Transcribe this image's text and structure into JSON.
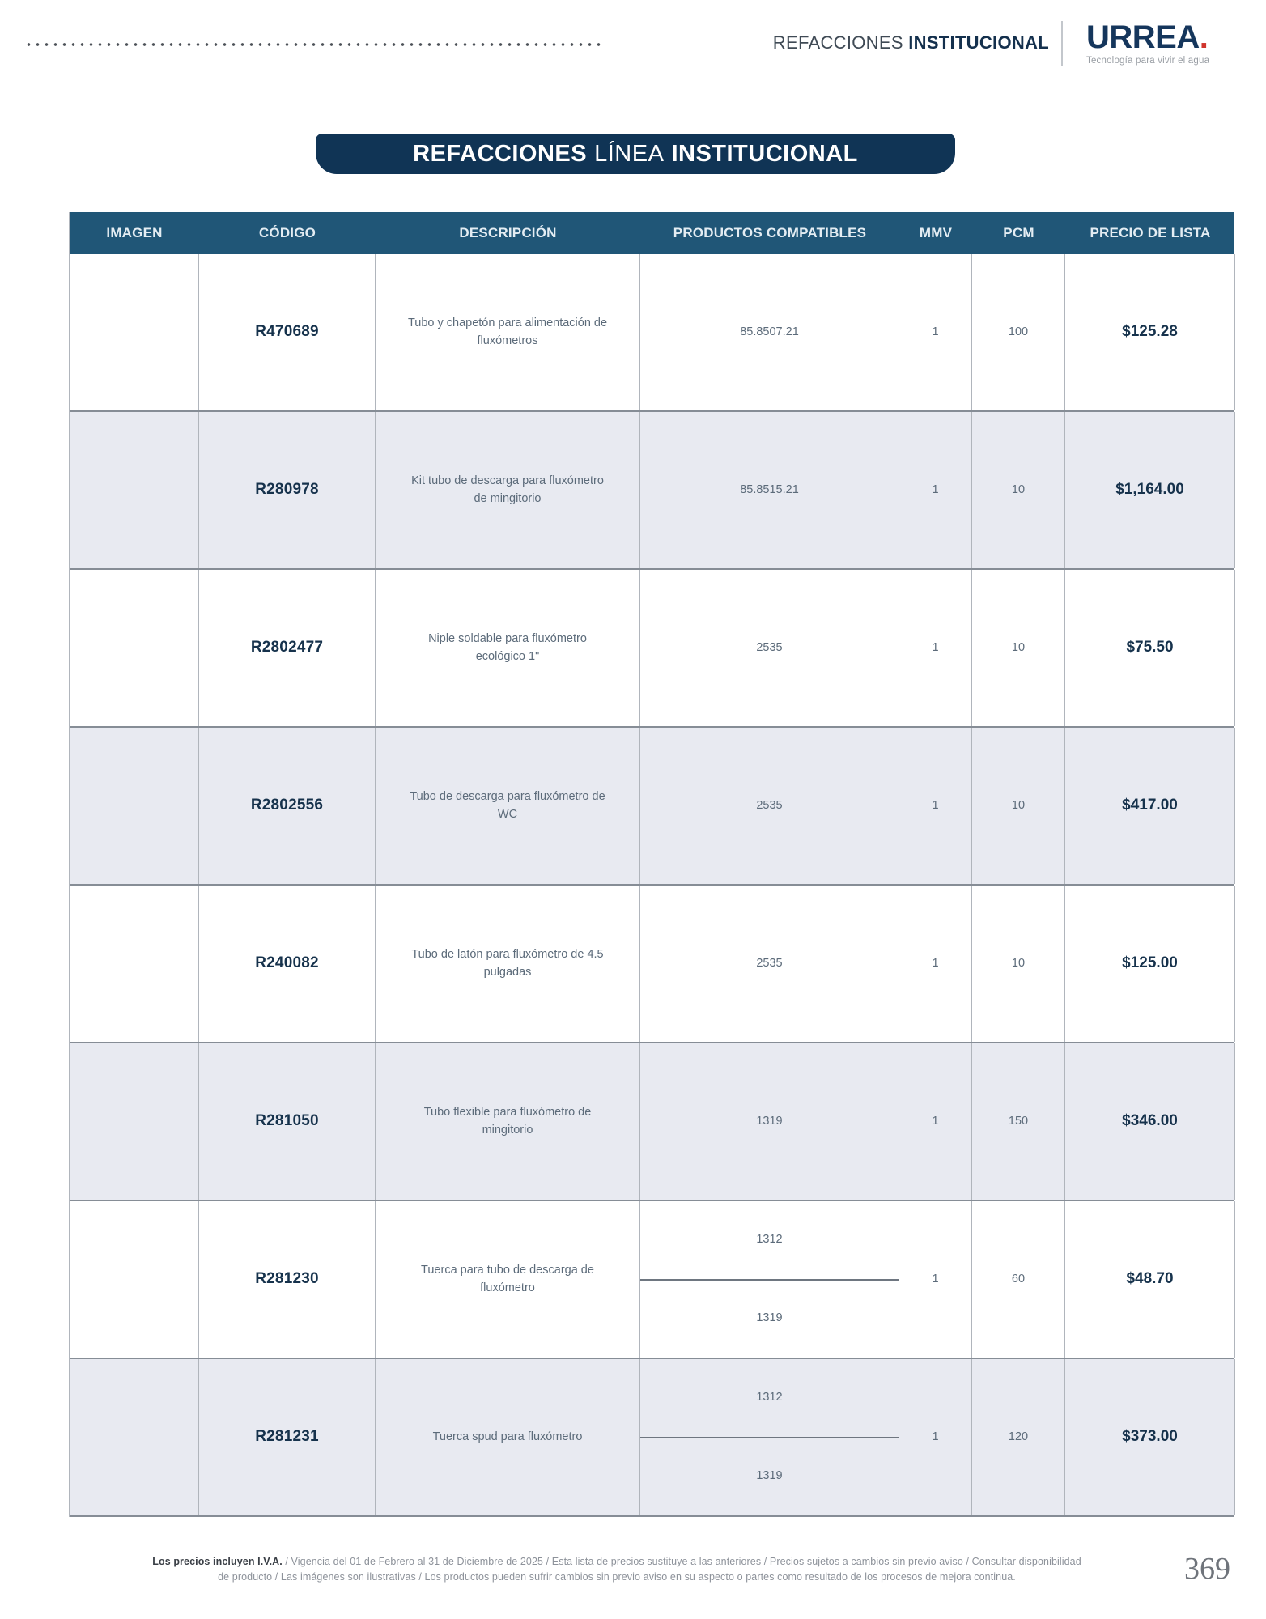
{
  "page_header": {
    "section_regular": "REFACCIONES",
    "section_bold": "INSTITUCIONAL",
    "logo_text": "URREA",
    "logo_dot": ".",
    "logo_tagline": "Tecnología para vivir el agua"
  },
  "title_banner": {
    "part_bold1": "REFACCIONES",
    "part_light": "LÍNEA",
    "part_bold2": "INSTITUCIONAL"
  },
  "table": {
    "columns": [
      "IMAGEN",
      "CÓDIGO",
      "DESCRIPCIÓN",
      "PRODUCTOS COMPATIBLES",
      "MMV",
      "PCM",
      "PRECIO DE LISTA"
    ],
    "rows": [
      {
        "codigo": "R470689",
        "descripcion": "Tubo y chapetón para alimentación de fluxómetros",
        "compatibles": [
          "85.8507.21"
        ],
        "mmv": "1",
        "pcm": "100",
        "precio": "$125.28"
      },
      {
        "codigo": "R280978",
        "descripcion": "Kit tubo de descarga para fluxómetro de mingitorio",
        "compatibles": [
          "85.8515.21"
        ],
        "mmv": "1",
        "pcm": "10",
        "precio": "$1,164.00"
      },
      {
        "codigo": "R2802477",
        "descripcion": "Niple soldable para fluxómetro ecológico 1\"",
        "compatibles": [
          "2535"
        ],
        "mmv": "1",
        "pcm": "10",
        "precio": "$75.50"
      },
      {
        "codigo": "R2802556",
        "descripcion": "Tubo de descarga para fluxómetro de WC",
        "compatibles": [
          "2535"
        ],
        "mmv": "1",
        "pcm": "10",
        "precio": "$417.00"
      },
      {
        "codigo": "R240082",
        "descripcion": "Tubo de latón para fluxómetro de 4.5 pulgadas",
        "compatibles": [
          "2535"
        ],
        "mmv": "1",
        "pcm": "10",
        "precio": "$125.00"
      },
      {
        "codigo": "R281050",
        "descripcion": "Tubo flexible para fluxómetro de mingitorio",
        "compatibles": [
          "1319"
        ],
        "mmv": "1",
        "pcm": "150",
        "precio": "$346.00"
      },
      {
        "codigo": "R281230",
        "descripcion": "Tuerca para tubo de descarga de fluxómetro",
        "compatibles": [
          "1312",
          "1319"
        ],
        "mmv": "1",
        "pcm": "60",
        "precio": "$48.70"
      },
      {
        "codigo": "R281231",
        "descripcion": "Tuerca spud para fluxómetro",
        "compatibles": [
          "1312",
          "1319"
        ],
        "mmv": "1",
        "pcm": "120",
        "precio": "$373.00"
      }
    ]
  },
  "footer": {
    "bold_prefix": "Los precios incluyen I.V.A.",
    "line1_rest": " / Vigencia del 01 de Febrero al 31 de Diciembre de 2025 / Esta lista de precios sustituye a las anteriores / Precios sujetos a cambios sin previo aviso / Consultar disponibilidad",
    "line2": "de producto / Las imágenes son ilustrativas / Los productos pueden sufrir cambios sin previo aviso en su aspecto o partes como resultado de los procesos de mejora continua.",
    "page_number": "369"
  },
  "colors": {
    "banner_bg": "#103455",
    "table_header_bg": "#205677",
    "row_alt_bg": "#e8eaf1",
    "code_text": "#16324c",
    "body_text": "#5c6b7a",
    "logo_navy": "#15365c",
    "logo_red": "#d0342c"
  }
}
